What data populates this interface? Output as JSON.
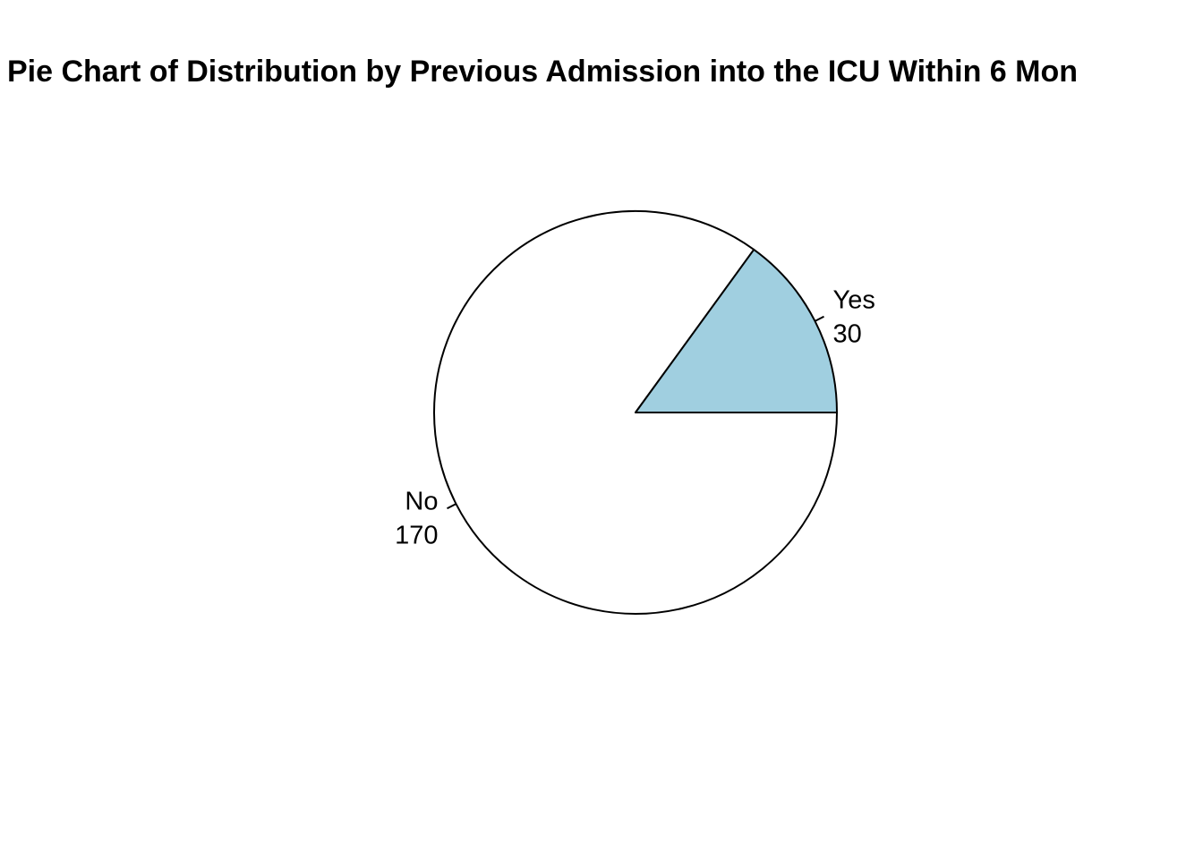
{
  "chart_data": {
    "type": "pie",
    "title": "Pie Chart of Distribution by Previous Admission into the ICU Within 6 Mon",
    "slices": [
      {
        "label": "No",
        "value": 170,
        "value_text": "170",
        "color": "#ffffff"
      },
      {
        "label": "Yes",
        "value": 30,
        "value_text": "30",
        "color": "#a0cfe0"
      }
    ],
    "start_angle_deg": 0,
    "direction": "clockwise",
    "legend": "none"
  }
}
